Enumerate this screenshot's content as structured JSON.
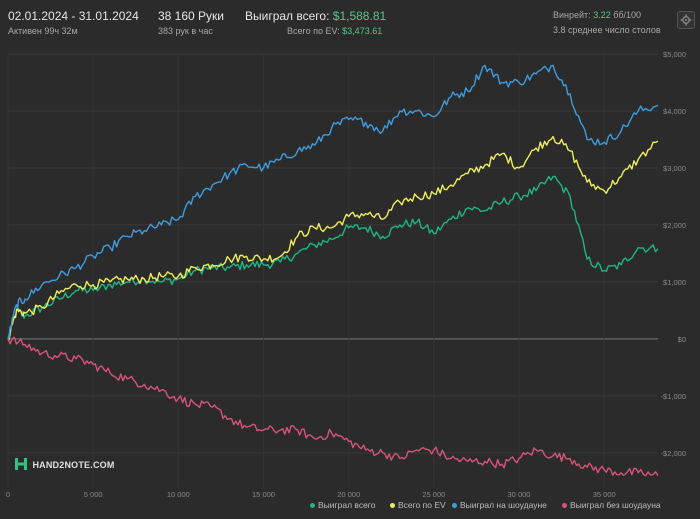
{
  "header": {
    "date_range": "02.01.2024 - 31.01.2024",
    "active": "Активен 99ч 32м",
    "hands": "38 160 Руки",
    "hands_per_hour": "383 рук в час",
    "won_label": "Выиграл всего:",
    "won_value": "$1,588.81",
    "ev_label": "Всего по EV:",
    "ev_value": "$3,473.61",
    "winrate_label": "Винрейт:",
    "winrate_value": "3.22",
    "winrate_unit": "бб/100",
    "avg_tables": "3.8 среднее число столов"
  },
  "logo_text": "HAND2NOTE.COM",
  "icons": {
    "settings": "gear-icon",
    "logo": "hand2note-logo-icon"
  },
  "chart_data": {
    "type": "line",
    "xlim": [
      0,
      38160
    ],
    "ylim": [
      -2600,
      5000
    ],
    "x_ticks": [
      0,
      5000,
      10000,
      15000,
      20000,
      25000,
      30000,
      35000
    ],
    "x_tick_labels": [
      "0",
      "5 000",
      "10 000",
      "15 000",
      "20 000",
      "25 000",
      "30 000",
      "35 000"
    ],
    "y_ticks": [
      -2000,
      -1000,
      0,
      1000,
      2000,
      3000,
      4000,
      5000
    ],
    "y_tick_labels": [
      "-$2,000",
      "-$1,000",
      "$0",
      "$1,000",
      "$2,000",
      "$3,000",
      "$4,000",
      "$5,000"
    ],
    "grid": true,
    "legend_position": "bottom-right",
    "series": [
      {
        "name": "Выиграл всего",
        "color": "#1fb584",
        "points": [
          [
            0,
            0
          ],
          [
            500,
            500
          ],
          [
            1000,
            400
          ],
          [
            2000,
            550
          ],
          [
            3000,
            700
          ],
          [
            4000,
            850
          ],
          [
            5000,
            850
          ],
          [
            6000,
            950
          ],
          [
            7000,
            1000
          ],
          [
            8000,
            1050
          ],
          [
            9000,
            1000
          ],
          [
            10000,
            1050
          ],
          [
            11000,
            1200
          ],
          [
            12000,
            1250
          ],
          [
            13000,
            1250
          ],
          [
            14000,
            1300
          ],
          [
            15000,
            1300
          ],
          [
            16000,
            1350
          ],
          [
            17000,
            1500
          ],
          [
            18000,
            1650
          ],
          [
            19000,
            1750
          ],
          [
            20000,
            1950
          ],
          [
            21000,
            1950
          ],
          [
            22000,
            1800
          ],
          [
            23000,
            2000
          ],
          [
            24000,
            2050
          ],
          [
            25000,
            1850
          ],
          [
            26000,
            2100
          ],
          [
            27000,
            2300
          ],
          [
            28000,
            2250
          ],
          [
            29000,
            2400
          ],
          [
            30000,
            2500
          ],
          [
            31000,
            2600
          ],
          [
            32000,
            2850
          ],
          [
            33000,
            2500
          ],
          [
            34000,
            1400
          ],
          [
            35000,
            1200
          ],
          [
            36000,
            1300
          ],
          [
            37000,
            1600
          ],
          [
            38160,
            1580
          ]
        ]
      },
      {
        "name": "Всего по EV",
        "color": "#f1ee5c",
        "points": [
          [
            0,
            0
          ],
          [
            500,
            500
          ],
          [
            1000,
            450
          ],
          [
            2000,
            550
          ],
          [
            3000,
            800
          ],
          [
            4000,
            950
          ],
          [
            5000,
            950
          ],
          [
            6000,
            1000
          ],
          [
            7000,
            1050
          ],
          [
            8000,
            1050
          ],
          [
            9000,
            1100
          ],
          [
            10000,
            1100
          ],
          [
            11000,
            1250
          ],
          [
            12000,
            1300
          ],
          [
            13000,
            1400
          ],
          [
            14000,
            1450
          ],
          [
            15000,
            1400
          ],
          [
            16000,
            1450
          ],
          [
            17000,
            1800
          ],
          [
            18000,
            1950
          ],
          [
            19000,
            1950
          ],
          [
            20000,
            2150
          ],
          [
            21000,
            2200
          ],
          [
            22000,
            2100
          ],
          [
            23000,
            2400
          ],
          [
            24000,
            2500
          ],
          [
            25000,
            2550
          ],
          [
            26000,
            2700
          ],
          [
            27000,
            2900
          ],
          [
            28000,
            3050
          ],
          [
            29000,
            3250
          ],
          [
            30000,
            3000
          ],
          [
            31000,
            3350
          ],
          [
            32000,
            3550
          ],
          [
            33000,
            3300
          ],
          [
            34000,
            2750
          ],
          [
            35000,
            2600
          ],
          [
            36000,
            2850
          ],
          [
            37000,
            3150
          ],
          [
            38160,
            3470
          ]
        ]
      },
      {
        "name": "Выиграл на шоудауне",
        "color": "#3d9ce0",
        "points": [
          [
            0,
            0
          ],
          [
            500,
            600
          ],
          [
            1000,
            700
          ],
          [
            2000,
            950
          ],
          [
            3000,
            1100
          ],
          [
            4000,
            1250
          ],
          [
            5000,
            1450
          ],
          [
            6000,
            1600
          ],
          [
            7000,
            1800
          ],
          [
            8000,
            1900
          ],
          [
            9000,
            2000
          ],
          [
            10000,
            2100
          ],
          [
            11000,
            2500
          ],
          [
            12000,
            2700
          ],
          [
            13000,
            2900
          ],
          [
            14000,
            3050
          ],
          [
            15000,
            3000
          ],
          [
            16000,
            3150
          ],
          [
            17000,
            3300
          ],
          [
            18000,
            3400
          ],
          [
            19000,
            3700
          ],
          [
            20000,
            3850
          ],
          [
            21000,
            3800
          ],
          [
            22000,
            3650
          ],
          [
            23000,
            4000
          ],
          [
            24000,
            4000
          ],
          [
            25000,
            3900
          ],
          [
            26000,
            4250
          ],
          [
            27000,
            4350
          ],
          [
            28000,
            4800
          ],
          [
            29000,
            4500
          ],
          [
            30000,
            4500
          ],
          [
            31000,
            4650
          ],
          [
            32000,
            4800
          ],
          [
            33000,
            4300
          ],
          [
            34000,
            3500
          ],
          [
            35000,
            3450
          ],
          [
            36000,
            3650
          ],
          [
            37000,
            4000
          ],
          [
            38160,
            4100
          ]
        ]
      },
      {
        "name": "Выиграл без шоудауна",
        "color": "#d8537a",
        "points": [
          [
            0,
            0
          ],
          [
            1000,
            -100
          ],
          [
            2000,
            -250
          ],
          [
            3000,
            -300
          ],
          [
            4000,
            -350
          ],
          [
            5000,
            -450
          ],
          [
            6000,
            -600
          ],
          [
            7000,
            -700
          ],
          [
            8000,
            -800
          ],
          [
            9000,
            -900
          ],
          [
            10000,
            -1050
          ],
          [
            11000,
            -1150
          ],
          [
            12000,
            -1200
          ],
          [
            13000,
            -1400
          ],
          [
            14000,
            -1550
          ],
          [
            15000,
            -1600
          ],
          [
            16000,
            -1600
          ],
          [
            17000,
            -1600
          ],
          [
            18000,
            -1750
          ],
          [
            19000,
            -1650
          ],
          [
            20000,
            -1800
          ],
          [
            21000,
            -1950
          ],
          [
            22000,
            -2000
          ],
          [
            23000,
            -2100
          ],
          [
            24000,
            -1950
          ],
          [
            25000,
            -1950
          ],
          [
            26000,
            -2100
          ],
          [
            27000,
            -2150
          ],
          [
            28000,
            -2150
          ],
          [
            29000,
            -2200
          ],
          [
            30000,
            -2100
          ],
          [
            31000,
            -1950
          ],
          [
            32000,
            -2050
          ],
          [
            33000,
            -2100
          ],
          [
            34000,
            -2250
          ],
          [
            35000,
            -2300
          ],
          [
            36000,
            -2350
          ],
          [
            37000,
            -2350
          ],
          [
            38160,
            -2400
          ]
        ]
      }
    ]
  }
}
